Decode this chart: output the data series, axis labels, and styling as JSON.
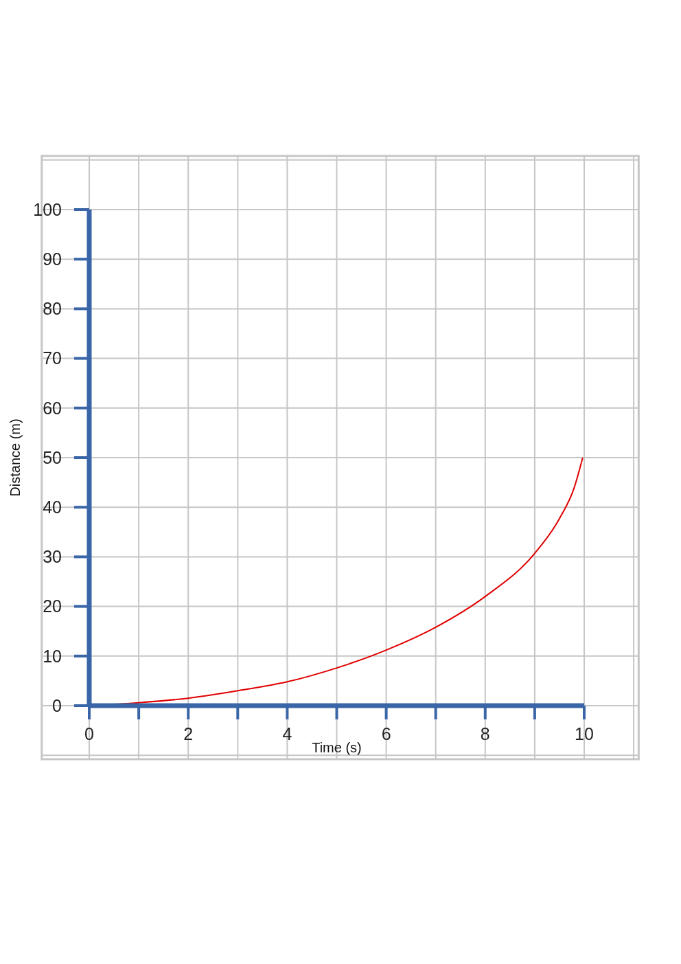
{
  "chart_data": {
    "type": "line",
    "xlabel": "Time (s)",
    "ylabel": "Distance (m)",
    "x": [
      0,
      1,
      2,
      3,
      4,
      5,
      6,
      7,
      8,
      9,
      9.5,
      9.8,
      9.97
    ],
    "values": [
      0,
      0.6,
      1.5,
      3.0,
      4.8,
      7.6,
      11.2,
      15.8,
      22,
      30.7,
      37.7,
      44,
      50
    ],
    "color": "#e00000",
    "xlim": [
      0,
      10
    ],
    "ylim": [
      0,
      100
    ],
    "xticks": [
      0,
      {
        "value": 1,
        "label": null
      },
      2,
      {
        "value": 3,
        "label": null
      },
      4,
      {
        "value": 5,
        "label": null
      },
      6,
      {
        "value": 7,
        "label": null
      },
      8,
      {
        "value": 9,
        "label": null
      },
      10
    ],
    "yticks": [
      0,
      10,
      20,
      30,
      40,
      50,
      60,
      70,
      80,
      90,
      100
    ],
    "grid": true,
    "marker": "none",
    "line_style": "solid"
  }
}
